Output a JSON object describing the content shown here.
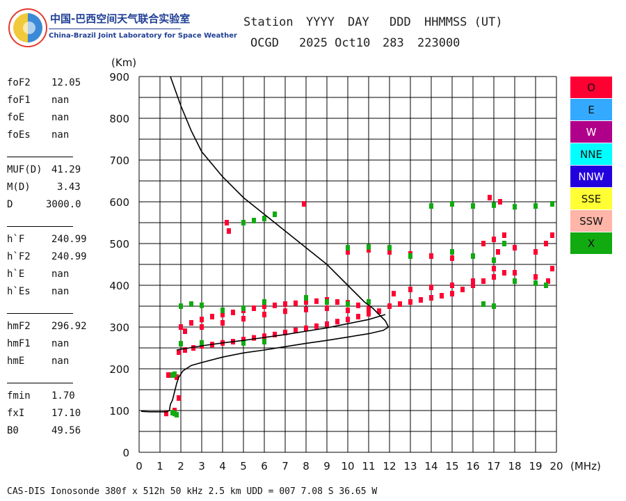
{
  "header": {
    "org_cn": "中国-巴西空间天气联合实验室",
    "org_en": "China-Brazil Joint Laboratory for Space Weather",
    "labels": [
      "Station",
      "YYYY",
      "DAY",
      "DDD",
      "HHMMSS (UT)"
    ],
    "values": [
      "OCGD",
      "2025 Oct10",
      "283",
      "223000"
    ]
  },
  "params": [
    {
      "name": "foF2",
      "value": "12.05"
    },
    {
      "name": "foF1",
      "value": "nan"
    },
    {
      "name": "foE",
      "value": "nan"
    },
    {
      "name": "foEs",
      "value": "nan"
    },
    {
      "name": "MUF(D)",
      "value": "41.29"
    },
    {
      "name": "M(D)",
      "value": "3.43"
    },
    {
      "name": "D",
      "value": "3000.0"
    },
    {
      "name": "h`F",
      "value": "240.99"
    },
    {
      "name": "h`F2",
      "value": "240.99"
    },
    {
      "name": "h`E",
      "value": "nan"
    },
    {
      "name": "h`Es",
      "value": "nan"
    },
    {
      "name": "hmF2",
      "value": "296.92"
    },
    {
      "name": "hmF1",
      "value": "nan"
    },
    {
      "name": "hmE",
      "value": "nan"
    },
    {
      "name": "fmin",
      "value": "1.70"
    },
    {
      "name": "fxI",
      "value": "17.10"
    },
    {
      "name": "B0",
      "value": "49.56"
    }
  ],
  "legend": [
    {
      "label": "O",
      "color": "#ff0033"
    },
    {
      "label": "E",
      "color": "#33aaff"
    },
    {
      "label": "W",
      "color": "#b0008a"
    },
    {
      "label": "NNE",
      "color": "#00ffff"
    },
    {
      "label": "NNW",
      "color": "#2200dd"
    },
    {
      "label": "SSE",
      "color": "#ffff33"
    },
    {
      "label": "SSW",
      "color": "#ffb5a8"
    },
    {
      "label": "X",
      "color": "#11aa11"
    }
  ],
  "footer": "CAS-DIS Ionosonde 380f x 512h 50 kHz 2.5 km UDD = 007 7.08 S 36.65 W",
  "chart_data": {
    "type": "scatter",
    "xlabel": "(MHz)",
    "ylabel": "(Km)",
    "xlim": [
      0,
      20
    ],
    "ylim": [
      0,
      900
    ],
    "xticks": [
      0,
      1,
      2,
      3,
      4,
      5,
      6,
      7,
      8,
      9,
      10,
      11,
      12,
      13,
      14,
      15,
      16,
      17,
      18,
      19,
      20
    ],
    "yticks": [
      0,
      100,
      200,
      300,
      400,
      500,
      600,
      700,
      800,
      900
    ],
    "grid": true,
    "series": [
      {
        "name": "O",
        "color": "#ff0033",
        "points": [
          [
            1.3,
            93
          ],
          [
            1.4,
            185
          ],
          [
            1.7,
            100
          ],
          [
            1.9,
            130
          ],
          [
            1.8,
            180
          ],
          [
            1.9,
            240
          ],
          [
            2.2,
            245
          ],
          [
            2.6,
            250
          ],
          [
            3,
            255
          ],
          [
            3.5,
            258
          ],
          [
            4,
            262
          ],
          [
            4.5,
            265
          ],
          [
            5,
            270
          ],
          [
            5.5,
            274
          ],
          [
            6,
            278
          ],
          [
            6.5,
            282
          ],
          [
            7,
            287
          ],
          [
            7.5,
            292
          ],
          [
            8,
            297
          ],
          [
            8.5,
            302
          ],
          [
            9,
            307
          ],
          [
            9.5,
            313
          ],
          [
            10,
            318
          ],
          [
            10.5,
            325
          ],
          [
            11,
            332
          ],
          [
            11.5,
            338
          ],
          [
            2,
            300
          ],
          [
            2.5,
            310
          ],
          [
            3,
            318
          ],
          [
            3.5,
            325
          ],
          [
            4,
            330
          ],
          [
            4.5,
            335
          ],
          [
            5,
            340
          ],
          [
            5.5,
            345
          ],
          [
            6,
            350
          ],
          [
            6.5,
            352
          ],
          [
            7,
            355
          ],
          [
            7.5,
            357
          ],
          [
            8,
            360
          ],
          [
            8.5,
            362
          ],
          [
            9,
            365
          ],
          [
            9.5,
            360
          ],
          [
            10,
            358
          ],
          [
            10.5,
            352
          ],
          [
            11,
            345
          ],
          [
            2.2,
            290
          ],
          [
            3,
            300
          ],
          [
            4,
            310
          ],
          [
            5,
            320
          ],
          [
            6,
            330
          ],
          [
            7,
            338
          ],
          [
            8,
            342
          ],
          [
            9,
            345
          ],
          [
            10,
            340
          ],
          [
            12,
            350
          ],
          [
            12.5,
            355
          ],
          [
            13,
            360
          ],
          [
            13.5,
            365
          ],
          [
            14,
            370
          ],
          [
            14.5,
            375
          ],
          [
            15,
            380
          ],
          [
            15.5,
            390
          ],
          [
            16,
            400
          ],
          [
            16.5,
            410
          ],
          [
            17,
            420
          ],
          [
            17.5,
            430
          ],
          [
            12.2,
            380
          ],
          [
            13,
            390
          ],
          [
            14,
            395
          ],
          [
            15,
            400
          ],
          [
            16,
            410
          ],
          [
            17,
            440
          ],
          [
            17.2,
            480
          ],
          [
            17.5,
            520
          ],
          [
            10,
            480
          ],
          [
            11,
            485
          ],
          [
            12,
            480
          ],
          [
            13,
            475
          ],
          [
            14,
            470
          ],
          [
            15,
            465
          ],
          [
            16,
            470
          ],
          [
            16.5,
            500
          ],
          [
            17,
            510
          ],
          [
            18,
            490
          ],
          [
            19,
            480
          ],
          [
            19.5,
            500
          ],
          [
            19.8,
            520
          ],
          [
            18,
            430
          ],
          [
            19,
            420
          ],
          [
            19.6,
            410
          ],
          [
            19.8,
            440
          ],
          [
            4.2,
            550
          ],
          [
            4.3,
            530
          ],
          [
            7.9,
            595
          ],
          [
            16.8,
            610
          ],
          [
            17.3,
            600
          ]
        ]
      },
      {
        "name": "X",
        "color": "#11aa11",
        "points": [
          [
            1.6,
            95
          ],
          [
            1.7,
            93
          ],
          [
            1.8,
            90
          ],
          [
            1.6,
            185
          ],
          [
            1.7,
            187
          ],
          [
            2,
            350
          ],
          [
            2.5,
            355
          ],
          [
            3,
            352
          ],
          [
            4,
            340
          ],
          [
            5,
            345
          ],
          [
            6,
            360
          ],
          [
            8,
            370
          ],
          [
            9,
            360
          ],
          [
            10,
            355
          ],
          [
            11,
            360
          ],
          [
            2,
            260
          ],
          [
            3,
            262
          ],
          [
            5,
            262
          ],
          [
            6,
            265
          ],
          [
            5,
            550
          ],
          [
            5.5,
            555
          ],
          [
            6,
            560
          ],
          [
            6.5,
            570
          ],
          [
            10,
            490
          ],
          [
            11,
            492
          ],
          [
            12,
            490
          ],
          [
            13,
            470
          ],
          [
            14,
            590
          ],
          [
            15,
            595
          ],
          [
            16,
            590
          ],
          [
            17,
            592
          ],
          [
            18,
            588
          ],
          [
            19,
            590
          ],
          [
            19.8,
            595
          ],
          [
            15,
            480
          ],
          [
            16,
            470
          ],
          [
            17,
            460
          ],
          [
            17.5,
            500
          ],
          [
            18,
            410
          ],
          [
            19,
            405
          ],
          [
            19.5,
            400
          ],
          [
            17,
            350
          ],
          [
            16.5,
            355
          ]
        ]
      }
    ],
    "curves": [
      {
        "name": "profile",
        "color": "#000000",
        "points": [
          [
            0.1,
            98
          ],
          [
            0.5,
            97
          ],
          [
            1.3,
            97
          ],
          [
            1.45,
            100
          ],
          [
            1.5,
            115
          ],
          [
            1.6,
            125
          ],
          [
            1.7,
            145
          ],
          [
            1.8,
            165
          ],
          [
            1.9,
            180
          ],
          [
            2.1,
            195
          ],
          [
            2.5,
            208
          ],
          [
            3,
            215
          ],
          [
            4,
            228
          ],
          [
            5,
            238
          ],
          [
            6,
            245
          ],
          [
            7,
            253
          ],
          [
            8,
            261
          ],
          [
            9,
            268
          ],
          [
            10,
            276
          ],
          [
            11,
            284
          ],
          [
            11.7,
            292
          ],
          [
            11.95,
            300
          ],
          [
            11.8,
            315
          ],
          [
            11.5,
            330
          ],
          [
            11.2,
            345
          ],
          [
            10.8,
            360
          ],
          [
            10.3,
            385
          ],
          [
            9.8,
            410
          ],
          [
            9,
            450
          ],
          [
            8,
            490
          ],
          [
            7,
            530
          ],
          [
            6,
            570
          ],
          [
            5,
            610
          ],
          [
            4,
            660
          ],
          [
            3,
            720
          ],
          [
            2.5,
            770
          ],
          [
            2,
            830
          ],
          [
            1.5,
            900
          ]
        ]
      },
      {
        "name": "trace",
        "color": "#000000",
        "points": [
          [
            1.8,
            245
          ],
          [
            3,
            255
          ],
          [
            4,
            262
          ],
          [
            5,
            268
          ],
          [
            6,
            275
          ],
          [
            7,
            282
          ],
          [
            8,
            290
          ],
          [
            9,
            298
          ],
          [
            10,
            308
          ],
          [
            11,
            318
          ],
          [
            11.8,
            330
          ]
        ]
      }
    ]
  }
}
